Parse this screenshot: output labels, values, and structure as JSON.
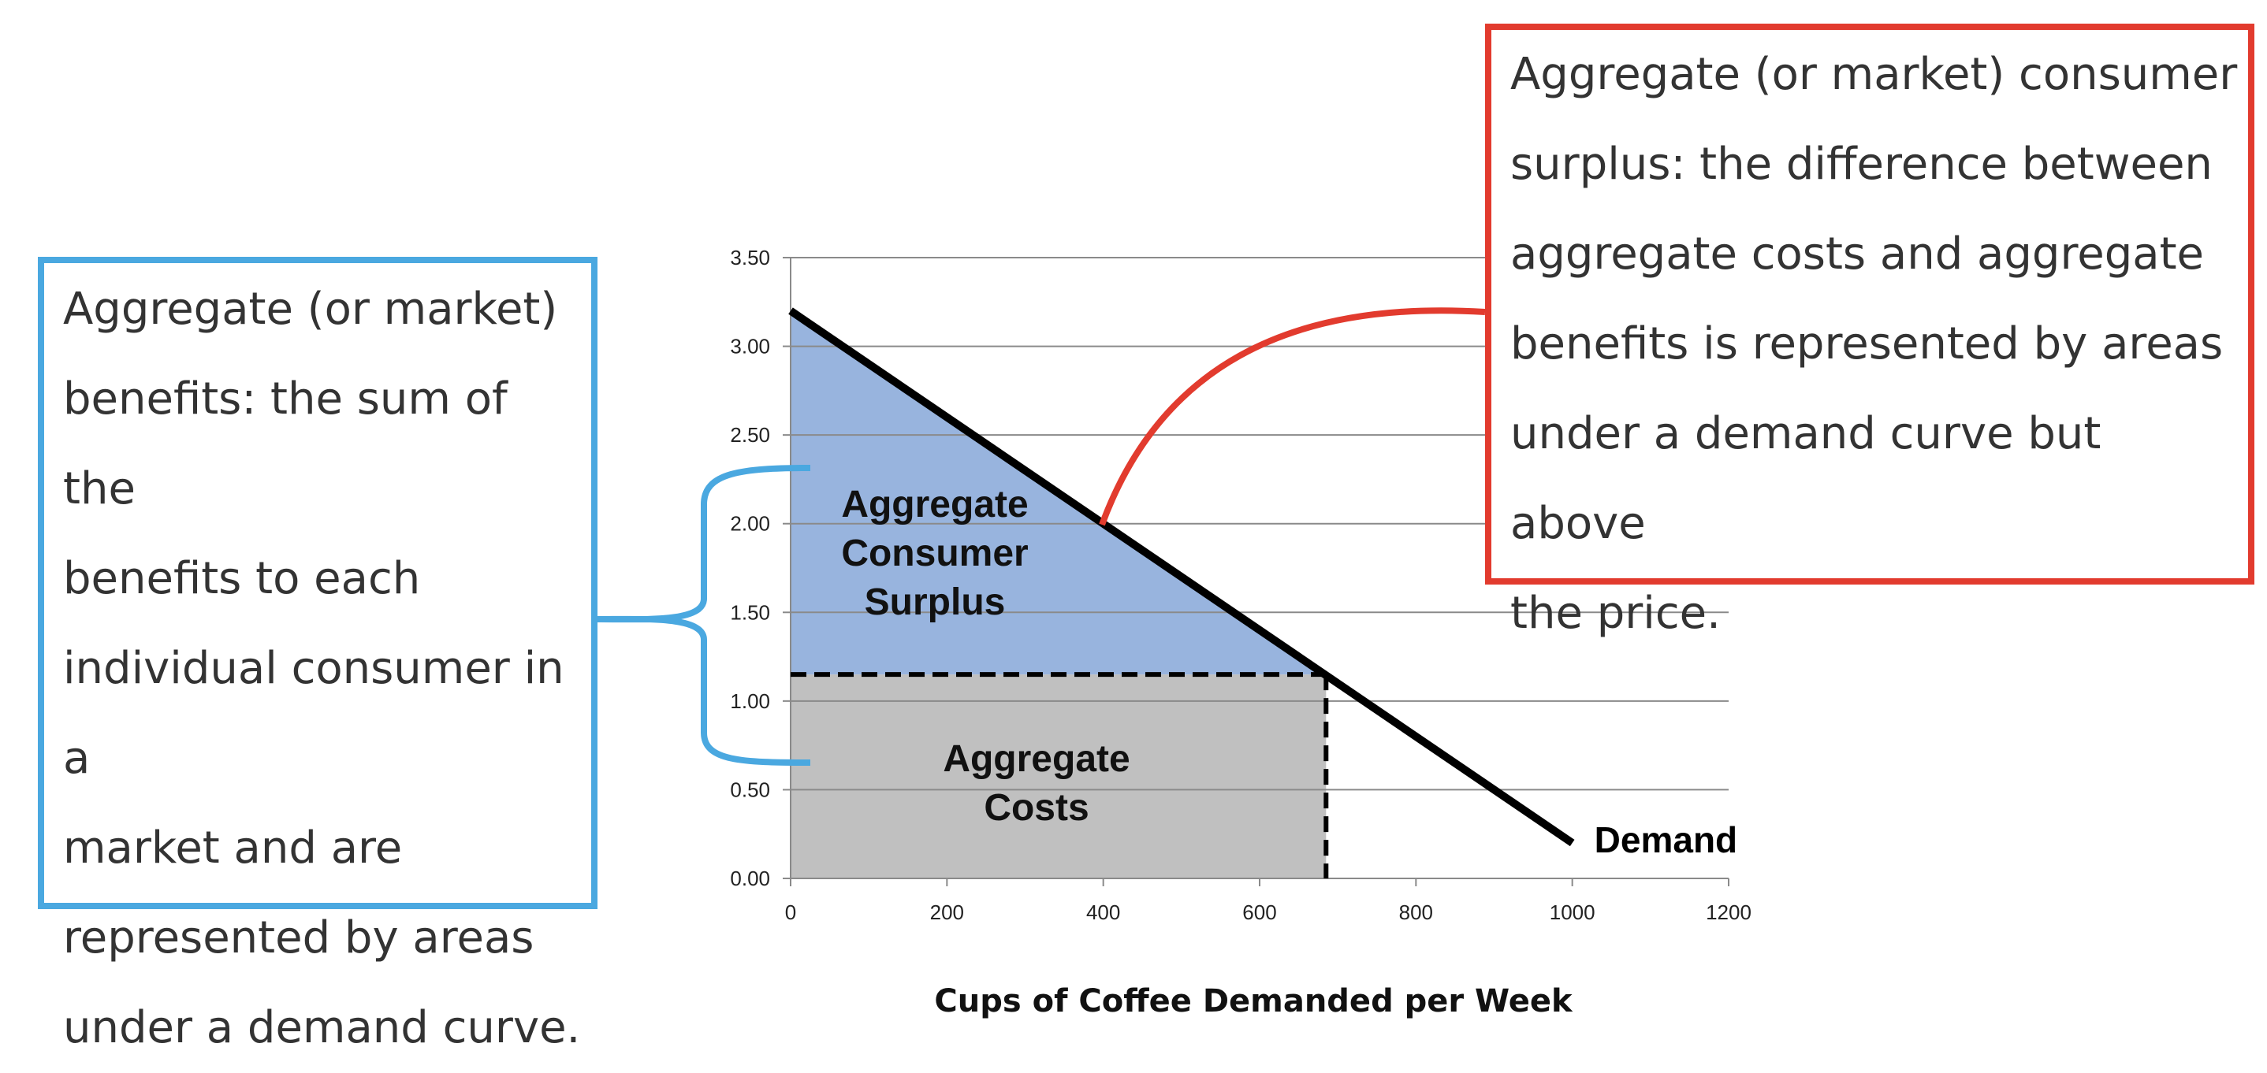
{
  "chart_data": {
    "type": "area",
    "xlabel": "Cups of Coffee Demanded per Week",
    "ylabel": "",
    "xlim": [
      0,
      1200
    ],
    "ylim": [
      0,
      3.5
    ],
    "x_ticks": [
      "0",
      "200",
      "400",
      "600",
      "800",
      "1000",
      "1200"
    ],
    "y_ticks": [
      "0.00",
      "0.50",
      "1.00",
      "1.50",
      "2.00",
      "2.50",
      "3.00",
      "3.50"
    ],
    "grid": true,
    "series": [
      {
        "name": "Demand",
        "x": [
          0,
          1000
        ],
        "y": [
          3.2,
          0.2
        ]
      }
    ],
    "price": 1.15,
    "quantity_at_price": 685,
    "regions": [
      {
        "label": "Aggregate Consumer Surplus",
        "color": "#98b4de"
      },
      {
        "label": "Aggregate Costs",
        "color": "#c0c0c0"
      }
    ],
    "demand_line_color": "#000000"
  },
  "callouts": {
    "benefits": {
      "text": "Aggregate (or market)\nbenefits: the sum of the\nbenefits to each\nindividual consumer in a\nmarket and are\nrepresented by areas\nunder a demand curve.",
      "border_color": "#4aa8e0"
    },
    "surplus": {
      "text": "Aggregate (or market) consumer\nsurplus: the difference between\naggregate costs and aggregate\nbenefits is represented by areas\nunder a demand curve but above\nthe price.",
      "border_color": "#e23b2e"
    }
  }
}
